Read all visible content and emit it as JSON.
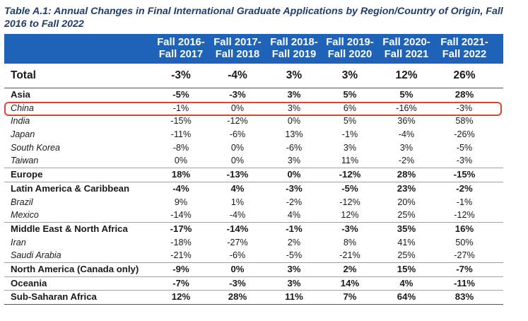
{
  "title": "Table A.1: Annual Changes in Final International Graduate Applications by Region/Country of Origin, Fall 2016 to Fall 2022",
  "columns": [
    [
      "Fall 2016-",
      "Fall 2017"
    ],
    [
      "Fall 2017-",
      "Fall 2018"
    ],
    [
      "Fall 2018-",
      "Fall 2019"
    ],
    [
      "Fall 2019-",
      "Fall 2020"
    ],
    [
      "Fall 2020-",
      "Fall 2021"
    ],
    [
      "Fall 2021-",
      "Fall 2022"
    ]
  ],
  "rows": [
    {
      "label": "Total",
      "style": "total",
      "values": [
        "-3%",
        "-4%",
        "3%",
        "3%",
        "12%",
        "26%"
      ]
    },
    {
      "label": "Asia",
      "style": "bold",
      "values": [
        "-5%",
        "-3%",
        "3%",
        "5%",
        "5%",
        "28%"
      ]
    },
    {
      "label": "China",
      "style": "sub",
      "values": [
        "-1%",
        "0%",
        "3%",
        "6%",
        "-16%",
        "-3%"
      ]
    },
    {
      "label": "India",
      "style": "sub",
      "values": [
        "-15%",
        "-12%",
        "0%",
        "5%",
        "36%",
        "58%"
      ]
    },
    {
      "label": "Japan",
      "style": "sub",
      "values": [
        "-11%",
        "-6%",
        "13%",
        "-1%",
        "-4%",
        "-26%"
      ]
    },
    {
      "label": "South Korea",
      "style": "sub",
      "values": [
        "-8%",
        "0%",
        "-6%",
        "3%",
        "3%",
        "-5%"
      ]
    },
    {
      "label": "Taiwan",
      "style": "sub",
      "values": [
        "0%",
        "0%",
        "3%",
        "11%",
        "-2%",
        "-3%"
      ]
    },
    {
      "label": "Europe",
      "style": "bold",
      "values": [
        "18%",
        "-13%",
        "0%",
        "-12%",
        "28%",
        "-15%"
      ]
    },
    {
      "label": "Latin America & Caribbean",
      "style": "bold",
      "values": [
        "-4%",
        "4%",
        "-3%",
        "-5%",
        "23%",
        "-2%"
      ]
    },
    {
      "label": "Brazil",
      "style": "sub",
      "values": [
        "9%",
        "1%",
        "-2%",
        "-12%",
        "20%",
        "-1%"
      ]
    },
    {
      "label": "Mexico",
      "style": "sub",
      "values": [
        "-14%",
        "-4%",
        "4%",
        "12%",
        "25%",
        "-12%"
      ]
    },
    {
      "label": "Middle East & North Africa",
      "style": "bold",
      "values": [
        "-17%",
        "-14%",
        "-1%",
        "-3%",
        "35%",
        "16%"
      ]
    },
    {
      "label": "Iran",
      "style": "sub",
      "values": [
        "-18%",
        "-27%",
        "2%",
        "8%",
        "41%",
        "50%"
      ]
    },
    {
      "label": "Saudi Arabia",
      "style": "sub",
      "values": [
        "-21%",
        "-6%",
        "-5%",
        "-21%",
        "25%",
        "-27%"
      ]
    },
    {
      "label": "North America (Canada only)",
      "style": "bold",
      "values": [
        "-9%",
        "0%",
        "3%",
        "2%",
        "15%",
        "-7%"
      ]
    },
    {
      "label": "Oceania",
      "style": "bold",
      "values": [
        "-7%",
        "-3%",
        "3%",
        "14%",
        "4%",
        "-11%"
      ]
    },
    {
      "label": "Sub-Saharan Africa",
      "style": "bold",
      "values": [
        "12%",
        "28%",
        "11%",
        "7%",
        "64%",
        "83%"
      ]
    }
  ],
  "highlight_color": "#e0462f",
  "header_color": "#1f63b8"
}
